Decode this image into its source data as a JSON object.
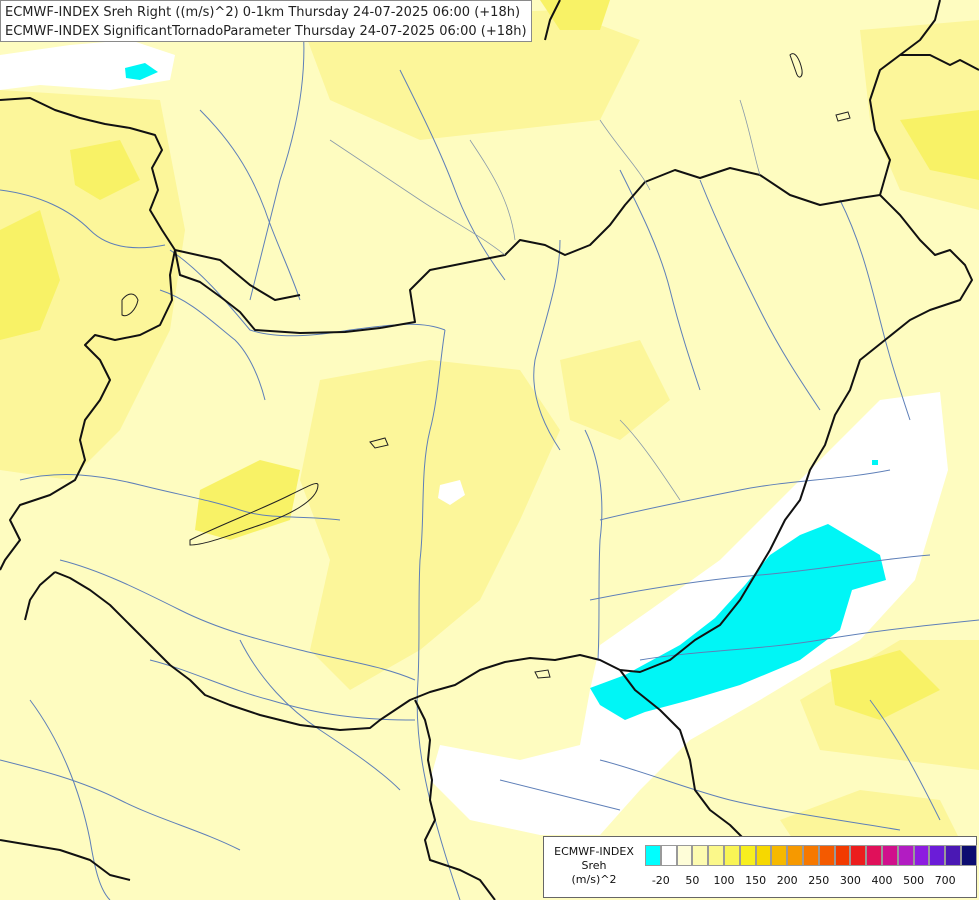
{
  "title": {
    "line1": "ECMWF-INDEX Sreh Right ((m/s)^2) 0-1km Thursday 24-07-2025 06:00 (+18h)",
    "line2": "ECMWF-INDEX SignificantTornadoParameter Thursday 24-07-2025 06:00 (+18h)"
  },
  "legend": {
    "source": "ECMWF-INDEX",
    "param": "Sreh",
    "unit": "(m/s)^2",
    "colors": [
      "#00ffff",
      "#ffffff",
      "#fefdd8",
      "#fdfbb0",
      "#fbf88a",
      "#f9f455",
      "#f7ef1f",
      "#f6d800",
      "#f6b900",
      "#f69900",
      "#f67800",
      "#f45a00",
      "#f23a00",
      "#ec1d1d",
      "#e0105a",
      "#d0108c",
      "#b21cc2",
      "#8d1ce0",
      "#6b1cd8",
      "#4a18b4",
      "#0c0c70"
    ],
    "ticks": [
      "-20",
      "50",
      "100",
      "150",
      "200",
      "250",
      "300",
      "400",
      "500",
      "700"
    ]
  }
}
